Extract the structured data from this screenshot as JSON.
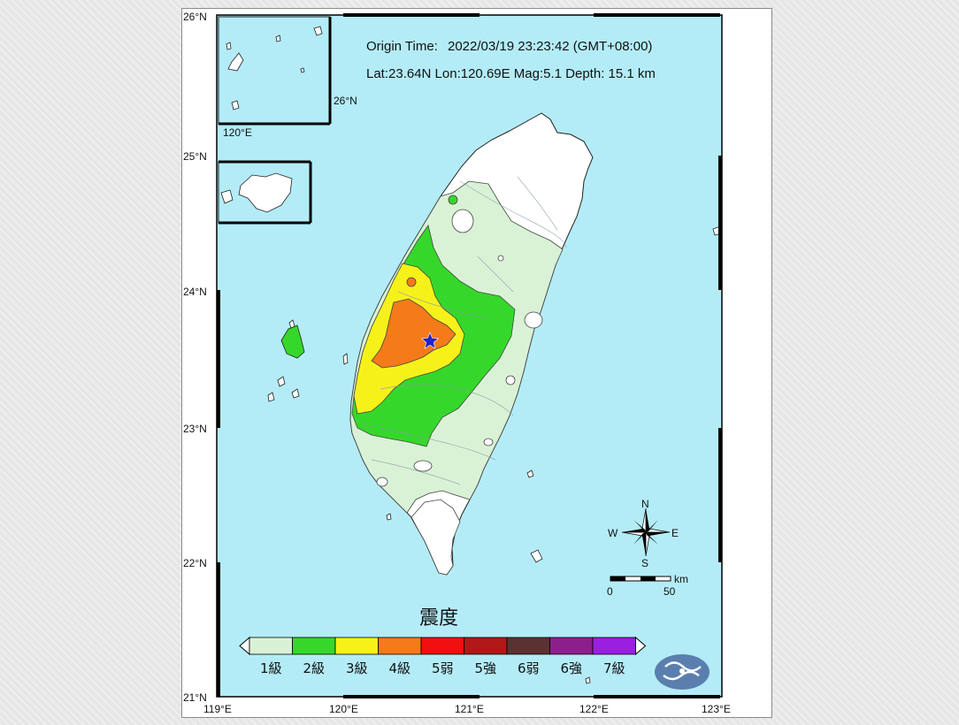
{
  "info": {
    "origin_label": "Origin Time:",
    "origin_value": "2022/03/19  23:23:42  (GMT+08:00)",
    "location_line": "Lat:23.64N  Lon:120.69E  Mag:5.1  Depth: 15.1 km"
  },
  "axes": {
    "lat_labels": [
      "26°N",
      "25°N",
      "24°N",
      "23°N",
      "22°N",
      "21°N"
    ],
    "lon_labels": [
      "119°E",
      "120°E",
      "121°E",
      "122°E",
      "123°E"
    ]
  },
  "inset": {
    "lat_label": "26°N",
    "lon_label": "120°E"
  },
  "epicenter": {
    "lat": 23.64,
    "lon": 120.69,
    "symbol": "star",
    "color": "#2222cc"
  },
  "compass": {
    "n": "N",
    "s": "S",
    "e": "E",
    "w": "W"
  },
  "scale_bar": {
    "unit": "km",
    "labels": [
      "0",
      "50"
    ]
  },
  "legend": {
    "title": "震度",
    "items": [
      {
        "label": "1級",
        "color": "#d9f2d6"
      },
      {
        "label": "2級",
        "color": "#35d82a"
      },
      {
        "label": "3級",
        "color": "#f6f219"
      },
      {
        "label": "4級",
        "color": "#f47a1a"
      },
      {
        "label": "5弱",
        "color": "#f20f0f"
      },
      {
        "label": "5強",
        "color": "#b01818"
      },
      {
        "label": "6弱",
        "color": "#5a3232"
      },
      {
        "label": "6強",
        "color": "#8d1f8d"
      },
      {
        "label": "7級",
        "color": "#9a1fe0"
      }
    ]
  },
  "colors": {
    "sea": "#b3ecf7",
    "land_none": "#ffffff",
    "level1": "#d9f2d6",
    "level2": "#35d82a",
    "level3": "#f6f219",
    "level4": "#f47a1a",
    "logo": "#5a7fae"
  }
}
